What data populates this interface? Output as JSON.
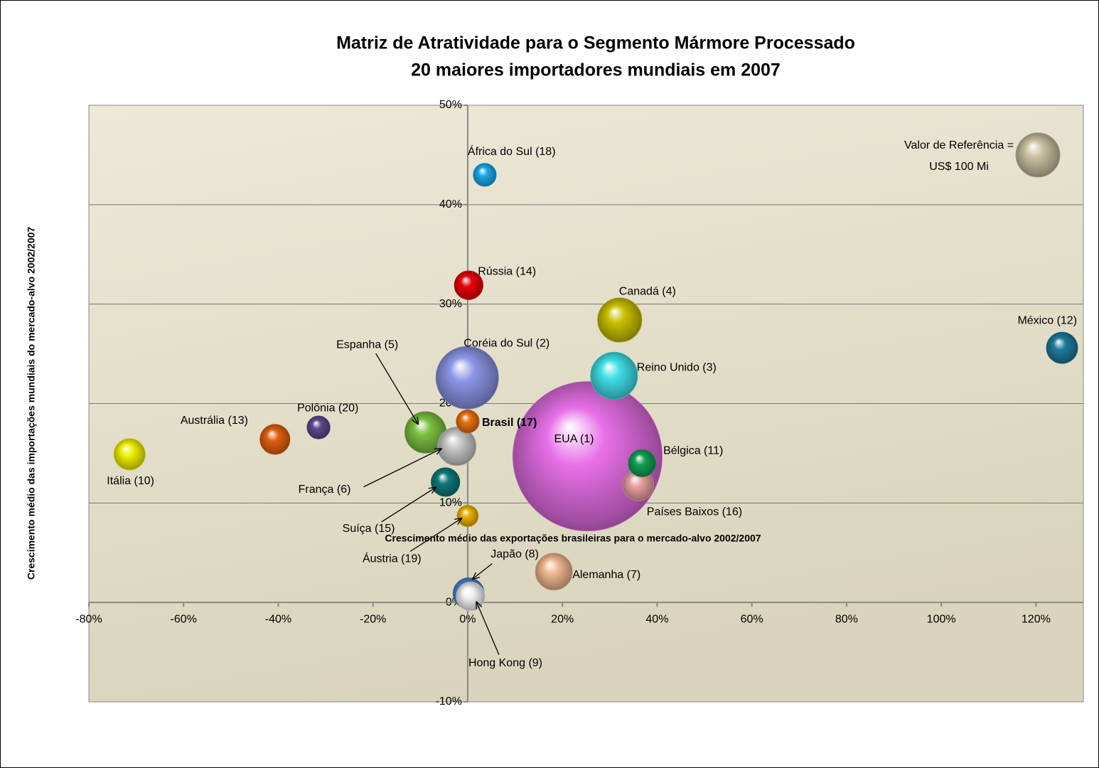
{
  "chart_data": {
    "type": "bubble",
    "title": [
      "Matriz de Atratividade para o Segmento Mármore Processado",
      "20 maiores importadores mundiais em 2007"
    ],
    "x_label": "Crescimento médio das exportações brasileiras para o mercado-alvo 2002/2007",
    "y_label": "Crescimento médio das importações mundiais do mercado-alvo 2002/2007",
    "xlim": [
      -80,
      130
    ],
    "ylim": [
      -10,
      50
    ],
    "xticks": [
      {
        "value": -80,
        "label": "-80%"
      },
      {
        "value": -60,
        "label": "-60%"
      },
      {
        "value": -40,
        "label": "-40%"
      },
      {
        "value": -20,
        "label": "-20%"
      },
      {
        "value": 0,
        "label": "0%"
      },
      {
        "value": 20,
        "label": "20%"
      },
      {
        "value": 40,
        "label": "40%"
      },
      {
        "value": 60,
        "label": "60%"
      },
      {
        "value": 80,
        "label": "80%"
      },
      {
        "value": 100,
        "label": "100%"
      },
      {
        "value": 120,
        "label": "120%"
      }
    ],
    "yticks": [
      {
        "value": -10,
        "label": "-10%"
      },
      {
        "value": 0,
        "label": "0%"
      },
      {
        "value": 10,
        "label": "10%"
      },
      {
        "value": 20,
        "label": "20%"
      },
      {
        "value": 30,
        "label": "30%"
      },
      {
        "value": 40,
        "label": "40%"
      },
      {
        "value": 50,
        "label": "50%"
      }
    ],
    "grid": true,
    "points": {
      "labels": [
        "África do Sul (18)",
        "Rússia (14)",
        "Canadá (4)",
        "México (12)",
        "Coréia do Sul (2)",
        "Reino Unido (3)",
        "Espanha (5)",
        "Brasil (17)",
        "França (6)",
        "Polônia (20)",
        "Austrália (13)",
        "Itália (10)",
        "EUA (1)",
        "Bélgica (11)",
        "Países Baixos (16)",
        "Suíça (15)",
        "Áustria (19)",
        "Alemanha (7)",
        "Japão (8)",
        "Hong Kong (9)"
      ],
      "x": [
        3.6,
        0.2,
        32.1,
        125.5,
        -0.1,
        30.9,
        -8.9,
        0,
        -2.3,
        -31.5,
        -40.7,
        -71.4,
        25.3,
        36.8,
        36,
        -4.7,
        0,
        18.2,
        0.2,
        0.6
      ],
      "y": [
        43,
        31.9,
        28.4,
        25.6,
        22.6,
        22.8,
        17.1,
        18.2,
        15.7,
        17.6,
        16.4,
        14.9,
        14.7,
        14,
        11.8,
        12.1,
        8.7,
        3.1,
        0.9,
        0.6
      ],
      "size": [
        27,
        42,
        100,
        50,
        201,
        113,
        88,
        27,
        76,
        27,
        46,
        50,
        1147,
        38,
        50,
        42,
        23,
        70,
        50,
        42
      ],
      "colors": [
        "#1aa8e8",
        "#e8000a",
        "#c8c000",
        "#1e7a9a",
        "#8c96e6",
        "#40e0e8",
        "#7cc040",
        "#e87010",
        "#c8c8c8",
        "#5a4a8c",
        "#e06010",
        "#f0f000",
        "#e870e8",
        "#10a050",
        "#e8a0a0",
        "#107878",
        "#e8b000",
        "#f0b890",
        "#4a80d0",
        "#f0f0f0"
      ]
    },
    "reference": {
      "label": [
        "Valor de Referência =",
        "US$ 100 Mi"
      ],
      "x": 120.4,
      "y": 45,
      "size": 100,
      "color": "#c8c0a0"
    }
  }
}
